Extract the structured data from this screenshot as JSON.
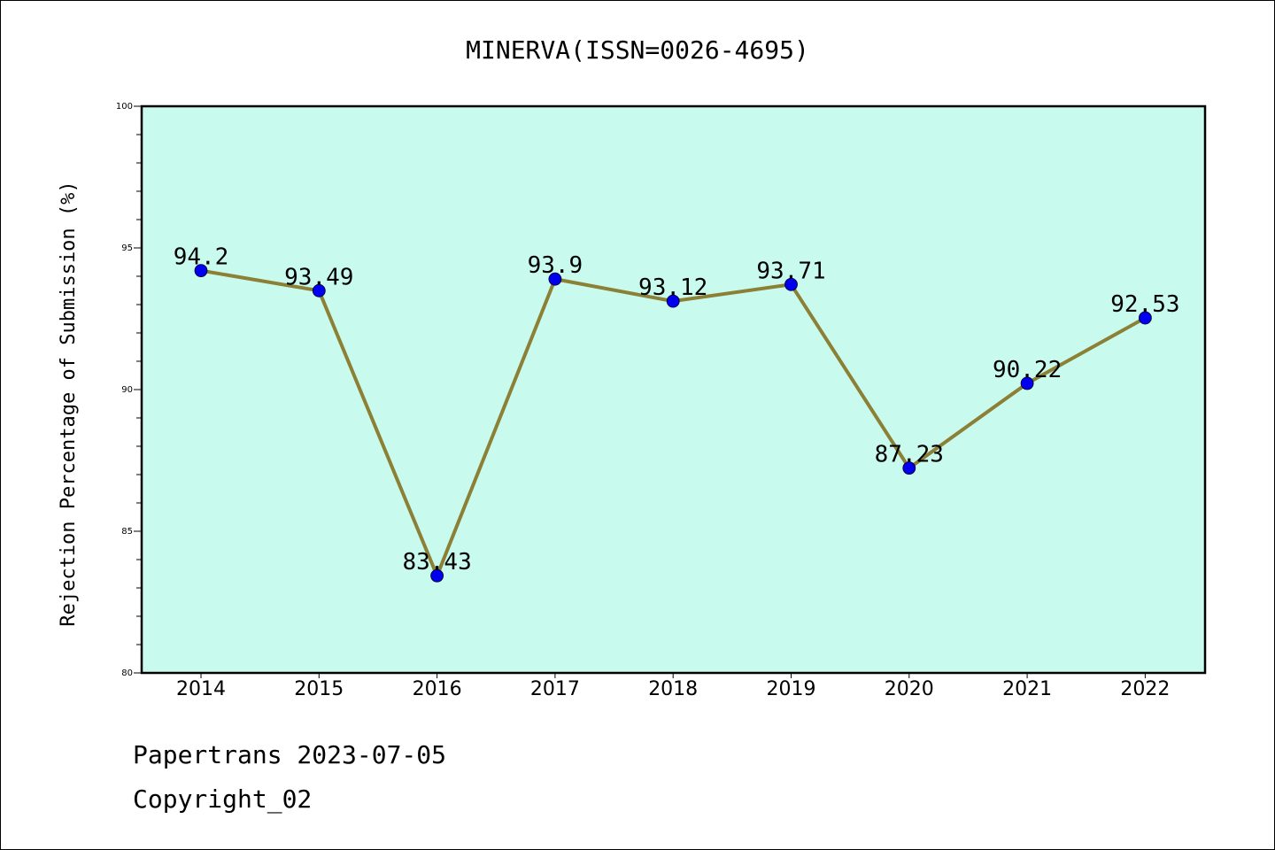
{
  "chart_data": {
    "type": "line",
    "title": "MINERVA(ISSN=0026-4695)",
    "xlabel": "",
    "ylabel": "Rejection Percentage of Submission (%)",
    "categories": [
      "2014",
      "2015",
      "2016",
      "2017",
      "2018",
      "2019",
      "2020",
      "2021",
      "2022"
    ],
    "series": [
      {
        "values": [
          94.2,
          93.49,
          83.43,
          93.9,
          93.12,
          93.71,
          87.23,
          90.22,
          92.53
        ]
      }
    ],
    "data_labels": [
      "94.2",
      "93.49",
      "83.43",
      "93.9",
      "93.12",
      "93.71",
      "87.23",
      "90.22",
      "92.53"
    ],
    "ylim": [
      80,
      100
    ],
    "yticks": [
      80,
      85,
      90,
      95,
      100
    ],
    "grid": false,
    "colors": {
      "plot_background": "#c8fbee",
      "line": "#8b8035",
      "marker": "#0000ee",
      "axes": "#000000"
    }
  },
  "footer": {
    "source": "Papertrans 2023-07-05",
    "copyright": "Copyright_02"
  }
}
